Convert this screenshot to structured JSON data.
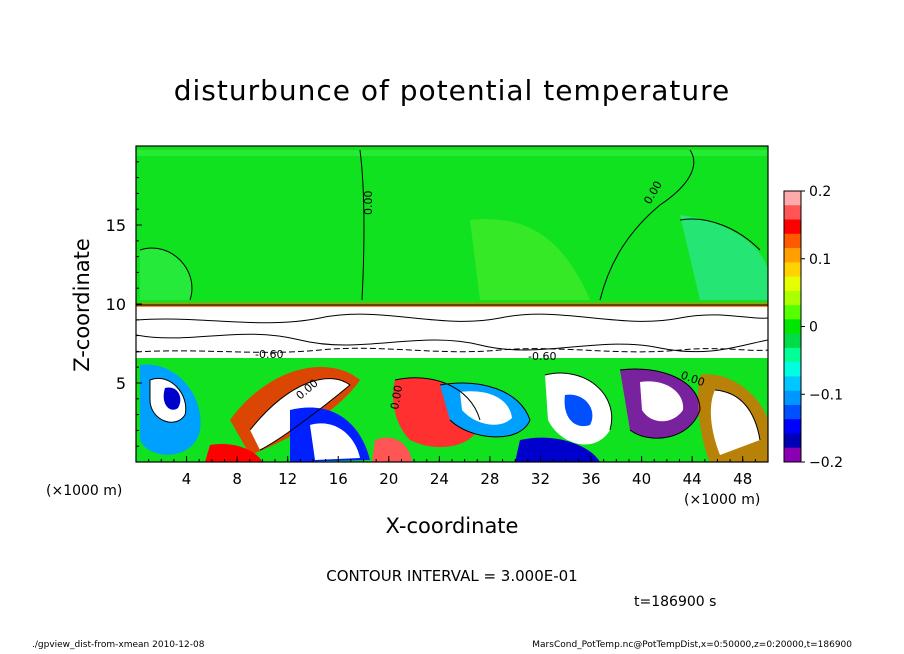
{
  "chart_data": {
    "type": "heatmap",
    "title": "disturbunce of potential temperature",
    "xlabel": "X-coordinate",
    "ylabel": "Z-coordinate",
    "x_unit": "(×1000 m)",
    "x_ticks": [
      4,
      8,
      12,
      16,
      20,
      24,
      28,
      32,
      36,
      40,
      44,
      48
    ],
    "y_ticks": [
      5,
      10,
      15
    ],
    "xlim": [
      0,
      50
    ],
    "ylim": [
      0,
      20
    ],
    "colorbar": {
      "ticks": [
        "0.2",
        "0.1",
        "0",
        "−0.1",
        "−0.2"
      ],
      "range": [
        -0.2,
        0.2
      ],
      "colors": [
        "#ffaaaa",
        "#ff5555",
        "#ff0000",
        "#ff5a00",
        "#ffa000",
        "#ffd200",
        "#e6ff00",
        "#aaff00",
        "#55ff00",
        "#00e600",
        "#00dc46",
        "#00ff96",
        "#00ffe1",
        "#00c8ff",
        "#0096ff",
        "#0050ff",
        "#0000ff",
        "#0000b4",
        "#8c00b4"
      ]
    },
    "contour_labels": [
      "0.00",
      "0.00",
      "0.00",
      "0.00",
      "0.00",
      "-0.60",
      "-0.60"
    ],
    "contour_interval": "CONTOUR INTERVAL = 3.000E-01",
    "time": "t=186900  s"
  },
  "footer": {
    "left": "./gpview_dist-from-xmean   2010-12-08",
    "right": "MarsCond_PotTemp.nc@PotTempDist,x=0:50000,z=0:20000,t=186900"
  }
}
